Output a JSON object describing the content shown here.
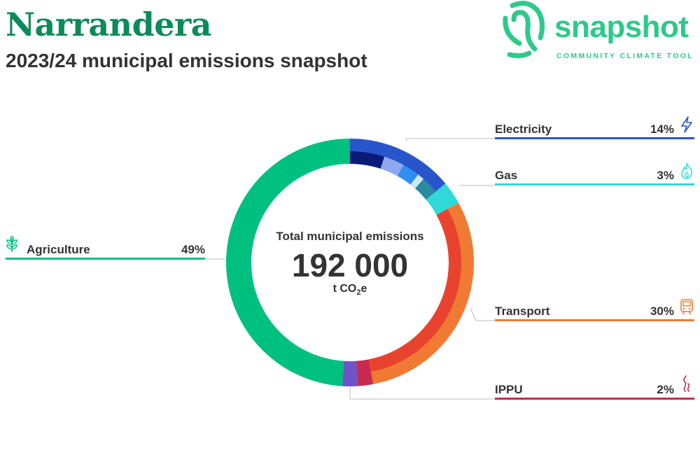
{
  "header": {
    "title": "Narrandera",
    "subtitle": "2023/24 municipal emissions snapshot"
  },
  "logo": {
    "word": "snapshot",
    "tagline": "COMMUNITY CLIMATE TOOL",
    "color": "#2ec98a",
    "icon": "fingerprint-icon"
  },
  "center": {
    "title": "Total municipal emissions",
    "value": "192 000",
    "unit_prefix": "t CO",
    "unit_sub": "2",
    "unit_suffix": "e"
  },
  "chart_data": {
    "type": "donut",
    "start": "top",
    "direction": "clockwise",
    "sectors": [
      {
        "label": "Electricity",
        "pct_label": "14%",
        "value": 14,
        "color": "#2955cc",
        "icon": "lightning-icon",
        "inner": [
          {
            "value": 5,
            "color": "#0a1a7a"
          },
          {
            "value": 3,
            "color": "#8fa8ee"
          },
          {
            "value": 2.5,
            "color": "#2e8ff0"
          },
          {
            "value": 1,
            "color": "#cde8ee"
          },
          {
            "value": 2.5,
            "color": "#2a8aa0"
          }
        ]
      },
      {
        "label": "Gas",
        "pct_label": "3%",
        "value": 3,
        "color": "#30d9d9",
        "icon": "flame-icon"
      },
      {
        "label": "Transport",
        "pct_label": "30%",
        "value": 30,
        "color": "#f07a33",
        "icon": "train-icon",
        "inner": [
          {
            "value": 30,
            "color": "#e8432e"
          }
        ]
      },
      {
        "label": "IPPU",
        "pct_label": "2%",
        "value": 2,
        "color": "#c8294f",
        "icon": "smoke-icon",
        "extra": [
          {
            "value": 2,
            "color": "#6f52c7"
          }
        ]
      },
      {
        "label": "Agriculture",
        "pct_label": "49%",
        "value": 49,
        "color": "#00c080",
        "icon": "wheat-icon"
      }
    ]
  }
}
